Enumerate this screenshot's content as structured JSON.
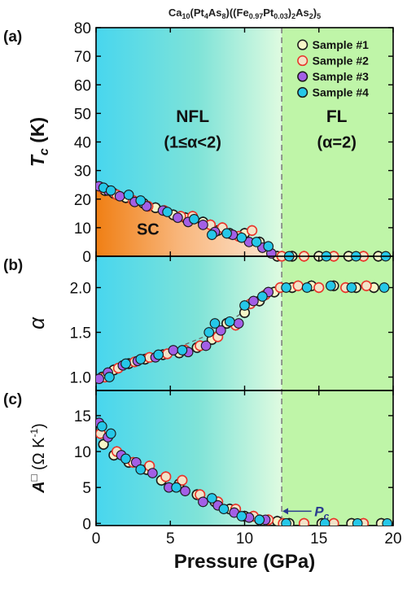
{
  "figure": {
    "title_parts": [
      {
        "t": "Ca",
        "s": "n"
      },
      {
        "t": "10",
        "s": "sub"
      },
      {
        "t": "(Pt",
        "s": "n"
      },
      {
        "t": "4",
        "s": "sub"
      },
      {
        "t": "As",
        "s": "n"
      },
      {
        "t": "8",
        "s": "sub"
      },
      {
        "t": ")((Fe",
        "s": "n"
      },
      {
        "t": "0.97",
        "s": "sub"
      },
      {
        "t": "Pt",
        "s": "n"
      },
      {
        "t": "0.03",
        "s": "sub"
      },
      {
        "t": ")",
        "s": "n"
      },
      {
        "t": "2",
        "s": "sub"
      },
      {
        "t": "As",
        "s": "n"
      },
      {
        "t": "2",
        "s": "sub"
      },
      {
        "t": ")",
        "s": "n"
      },
      {
        "t": "5",
        "s": "sub"
      }
    ],
    "xlabel": "Pressure (GPa)",
    "pc_pressure": 12.5,
    "pc_label": "P",
    "pc_label_sub": "c",
    "colors": {
      "nfl_left": "#48d6ee",
      "nfl_right": "#dffbe0",
      "fl": "#bff5a8",
      "sc_dark": "#f07f14",
      "sc_light": "#fde8d6",
      "axis": "#000000",
      "dashed_line": "#808080"
    }
  },
  "chart_data": [
    {
      "type": "scatter",
      "panel_label": "(a)",
      "ylabel": "T",
      "ylabel_sub": "c",
      "ylabel_unit": " (K)",
      "xlim": [
        0,
        20
      ],
      "ylim": [
        0,
        80
      ],
      "xticks": [
        0,
        5,
        10,
        15,
        20
      ],
      "yticks": [
        0,
        10,
        20,
        30,
        40,
        50,
        60,
        70,
        80
      ],
      "annotations": {
        "nfl_title": "NFL",
        "nfl_sub": "(1≤α<2)",
        "fl_title": "FL",
        "fl_sub": "(α=2)",
        "sc": "SC"
      },
      "legend": {
        "placement": "top-right"
      },
      "sc_dome": [
        [
          0,
          24
        ],
        [
          1,
          22.5
        ],
        [
          2,
          21
        ],
        [
          3,
          19.5
        ],
        [
          4,
          18
        ],
        [
          5,
          16.5
        ],
        [
          6,
          14.5
        ],
        [
          7,
          13
        ],
        [
          8,
          11
        ],
        [
          9,
          9
        ],
        [
          10,
          7
        ],
        [
          11,
          5
        ],
        [
          12,
          1.5
        ],
        [
          12.3,
          0
        ]
      ],
      "series": [
        {
          "name": "Sample #1",
          "color": "#1a1a1a",
          "x": [
            0.6,
            1.2,
            2.0,
            3.2,
            4.0,
            5.2,
            6.0,
            7.2,
            8.2,
            9.0,
            10.0,
            11.0,
            12.2,
            13.2,
            15.0,
            17.0,
            19.0
          ],
          "y": [
            23,
            22,
            20.5,
            18.5,
            17,
            14.5,
            13.5,
            12,
            9,
            8,
            8,
            5,
            0,
            0,
            0,
            0,
            0
          ]
        },
        {
          "name": "Sample #2",
          "color": "#e8342a",
          "x": [
            0.4,
            1.4,
            2.5,
            3.5,
            4.6,
            5.7,
            6.5,
            7.7,
            8.5,
            9.6,
            10.5,
            12.5,
            14.0,
            16.0,
            18.0
          ],
          "y": [
            24,
            21.5,
            19.5,
            17.5,
            16,
            14,
            14,
            11,
            10,
            7,
            9,
            0,
            0,
            0,
            0
          ]
        },
        {
          "name": "Sample #3",
          "color": "#a35fe6",
          "x": [
            0.2,
            0.8,
            1.6,
            2.6,
            3.4,
            4.5,
            5.5,
            6.2,
            7.2,
            8.0,
            9.2,
            10.3,
            11.2,
            11.8
          ],
          "y": [
            24.5,
            23,
            21,
            19,
            17.5,
            16,
            13.5,
            12,
            11,
            8.5,
            7.5,
            5,
            3,
            1
          ]
        },
        {
          "name": "Sample #4",
          "color": "#25c7e8",
          "x": [
            0.5,
            1.0,
            2.2,
            3.0,
            4.8,
            6.6,
            7.8,
            8.8,
            9.8,
            10.8,
            11.6,
            13.0,
            15.5,
            17.5,
            19.5
          ],
          "y": [
            24,
            23,
            21.5,
            19.5,
            15.5,
            13,
            7.5,
            8,
            6.5,
            5,
            3.5,
            0,
            0,
            0,
            0
          ]
        }
      ]
    },
    {
      "type": "scatter",
      "panel_label": "(b)",
      "ylabel": "α",
      "xlim": [
        0,
        20
      ],
      "ylim": [
        0.85,
        2.35
      ],
      "xticks": [
        0,
        5,
        10,
        15,
        20
      ],
      "yticks": [
        1.0,
        1.5,
        2.0
      ],
      "guide_line": [
        [
          0,
          1.0
        ],
        [
          4,
          1.23
        ],
        [
          8,
          1.5
        ],
        [
          10.5,
          1.8
        ],
        [
          12.5,
          2.02
        ]
      ],
      "series": [
        {
          "name": "Sample #1",
          "color": "#1a1a1a",
          "x": [
            0.4,
            1.2,
            2.2,
            3.3,
            4.5,
            5.6,
            6.8,
            7.8,
            8.8,
            10.0,
            11.0,
            12.0,
            13.2,
            14.5,
            16.0,
            17.5,
            18.7
          ],
          "y": [
            1.0,
            1.08,
            1.15,
            1.2,
            1.25,
            1.27,
            1.33,
            1.42,
            1.6,
            1.72,
            1.85,
            1.95,
            2.0,
            2.02,
            2.02,
            2.0,
            2.0
          ]
        },
        {
          "name": "Sample #2",
          "color": "#e8342a",
          "x": [
            0.6,
            1.5,
            2.6,
            3.6,
            4.8,
            6.0,
            7.0,
            8.2,
            9.4,
            10.4,
            11.4,
            12.4,
            13.6,
            15.0,
            16.8,
            18.2
          ],
          "y": [
            1.0,
            1.1,
            1.17,
            1.22,
            1.26,
            1.3,
            1.35,
            1.45,
            1.58,
            1.82,
            1.92,
            2.0,
            2.02,
            2.0,
            2.0,
            2.02
          ]
        },
        {
          "name": "Sample #3",
          "color": "#a35fe6",
          "x": [
            0.2,
            0.8,
            1.8,
            2.8,
            4.0,
            5.2,
            6.2,
            7.4,
            8.4,
            9.6,
            10.6,
            11.6
          ],
          "y": [
            0.98,
            1.05,
            1.13,
            1.18,
            1.22,
            1.3,
            1.28,
            1.35,
            1.52,
            1.6,
            1.85,
            1.95
          ]
        },
        {
          "name": "Sample #4",
          "color": "#25c7e8",
          "x": [
            0.9,
            2.0,
            3.0,
            4.2,
            5.8,
            7.6,
            8.0,
            9.0,
            10.0,
            11.2,
            12.8,
            14.2,
            15.8,
            17.2,
            19.4
          ],
          "y": [
            1.0,
            1.15,
            1.2,
            1.25,
            1.3,
            1.5,
            1.6,
            1.62,
            1.8,
            1.9,
            2.0,
            2.0,
            2.02,
            2.0,
            2.0
          ]
        }
      ]
    },
    {
      "type": "scatter",
      "panel_label": "(c)",
      "ylabel": "A",
      "ylabel_sup": "□",
      "ylabel_unit": " (Ω K",
      "ylabel_unit_sup": "-1",
      "ylabel_close": ")",
      "xlim": [
        0,
        20
      ],
      "ylim": [
        -0.3,
        18.5
      ],
      "xticks": [
        0,
        5,
        10,
        15,
        20
      ],
      "yticks": [
        0,
        5,
        10,
        15
      ],
      "series": [
        {
          "name": "Sample #1",
          "color": "#1a1a1a",
          "x": [
            0.5,
            1.2,
            2.2,
            3.4,
            4.4,
            5.6,
            6.8,
            8.0,
            9.0,
            10.0,
            11.0,
            12.2,
            13.0,
            15.2,
            17.2,
            19.2
          ],
          "y": [
            11,
            9.5,
            8.5,
            7.5,
            6,
            5.5,
            4,
            3,
            2,
            1,
            0.5,
            0.3,
            0,
            0,
            0,
            0
          ]
        },
        {
          "name": "Sample #2",
          "color": "#e8342a",
          "x": [
            0.3,
            1.4,
            2.5,
            3.6,
            4.7,
            5.8,
            7.0,
            8.2,
            9.4,
            10.6,
            11.6,
            12.6,
            14.0,
            16.0,
            18.0
          ],
          "y": [
            12.5,
            10,
            8.5,
            8,
            6.5,
            6,
            4,
            3,
            2,
            1,
            0.5,
            0,
            0,
            0,
            0
          ]
        },
        {
          "name": "Sample #3",
          "color": "#a35fe6",
          "x": [
            0.2,
            0.8,
            1.7,
            2.7,
            3.8,
            4.9,
            6.0,
            7.2,
            8.2,
            9.3,
            10.3,
            11.4
          ],
          "y": [
            14,
            12,
            9.5,
            8.5,
            7,
            5,
            4.5,
            3,
            2.5,
            1.5,
            0.8,
            0.5
          ]
        },
        {
          "name": "Sample #4",
          "color": "#25c7e8",
          "x": [
            0.4,
            1.0,
            2.0,
            3.0,
            5.4,
            7.8,
            8.6,
            9.8,
            11.0,
            12.8,
            15.4,
            17.6,
            19.6
          ],
          "y": [
            13.5,
            12.5,
            9,
            7.5,
            5,
            3.5,
            2,
            1,
            0.5,
            0,
            0,
            0,
            0
          ]
        }
      ]
    }
  ]
}
